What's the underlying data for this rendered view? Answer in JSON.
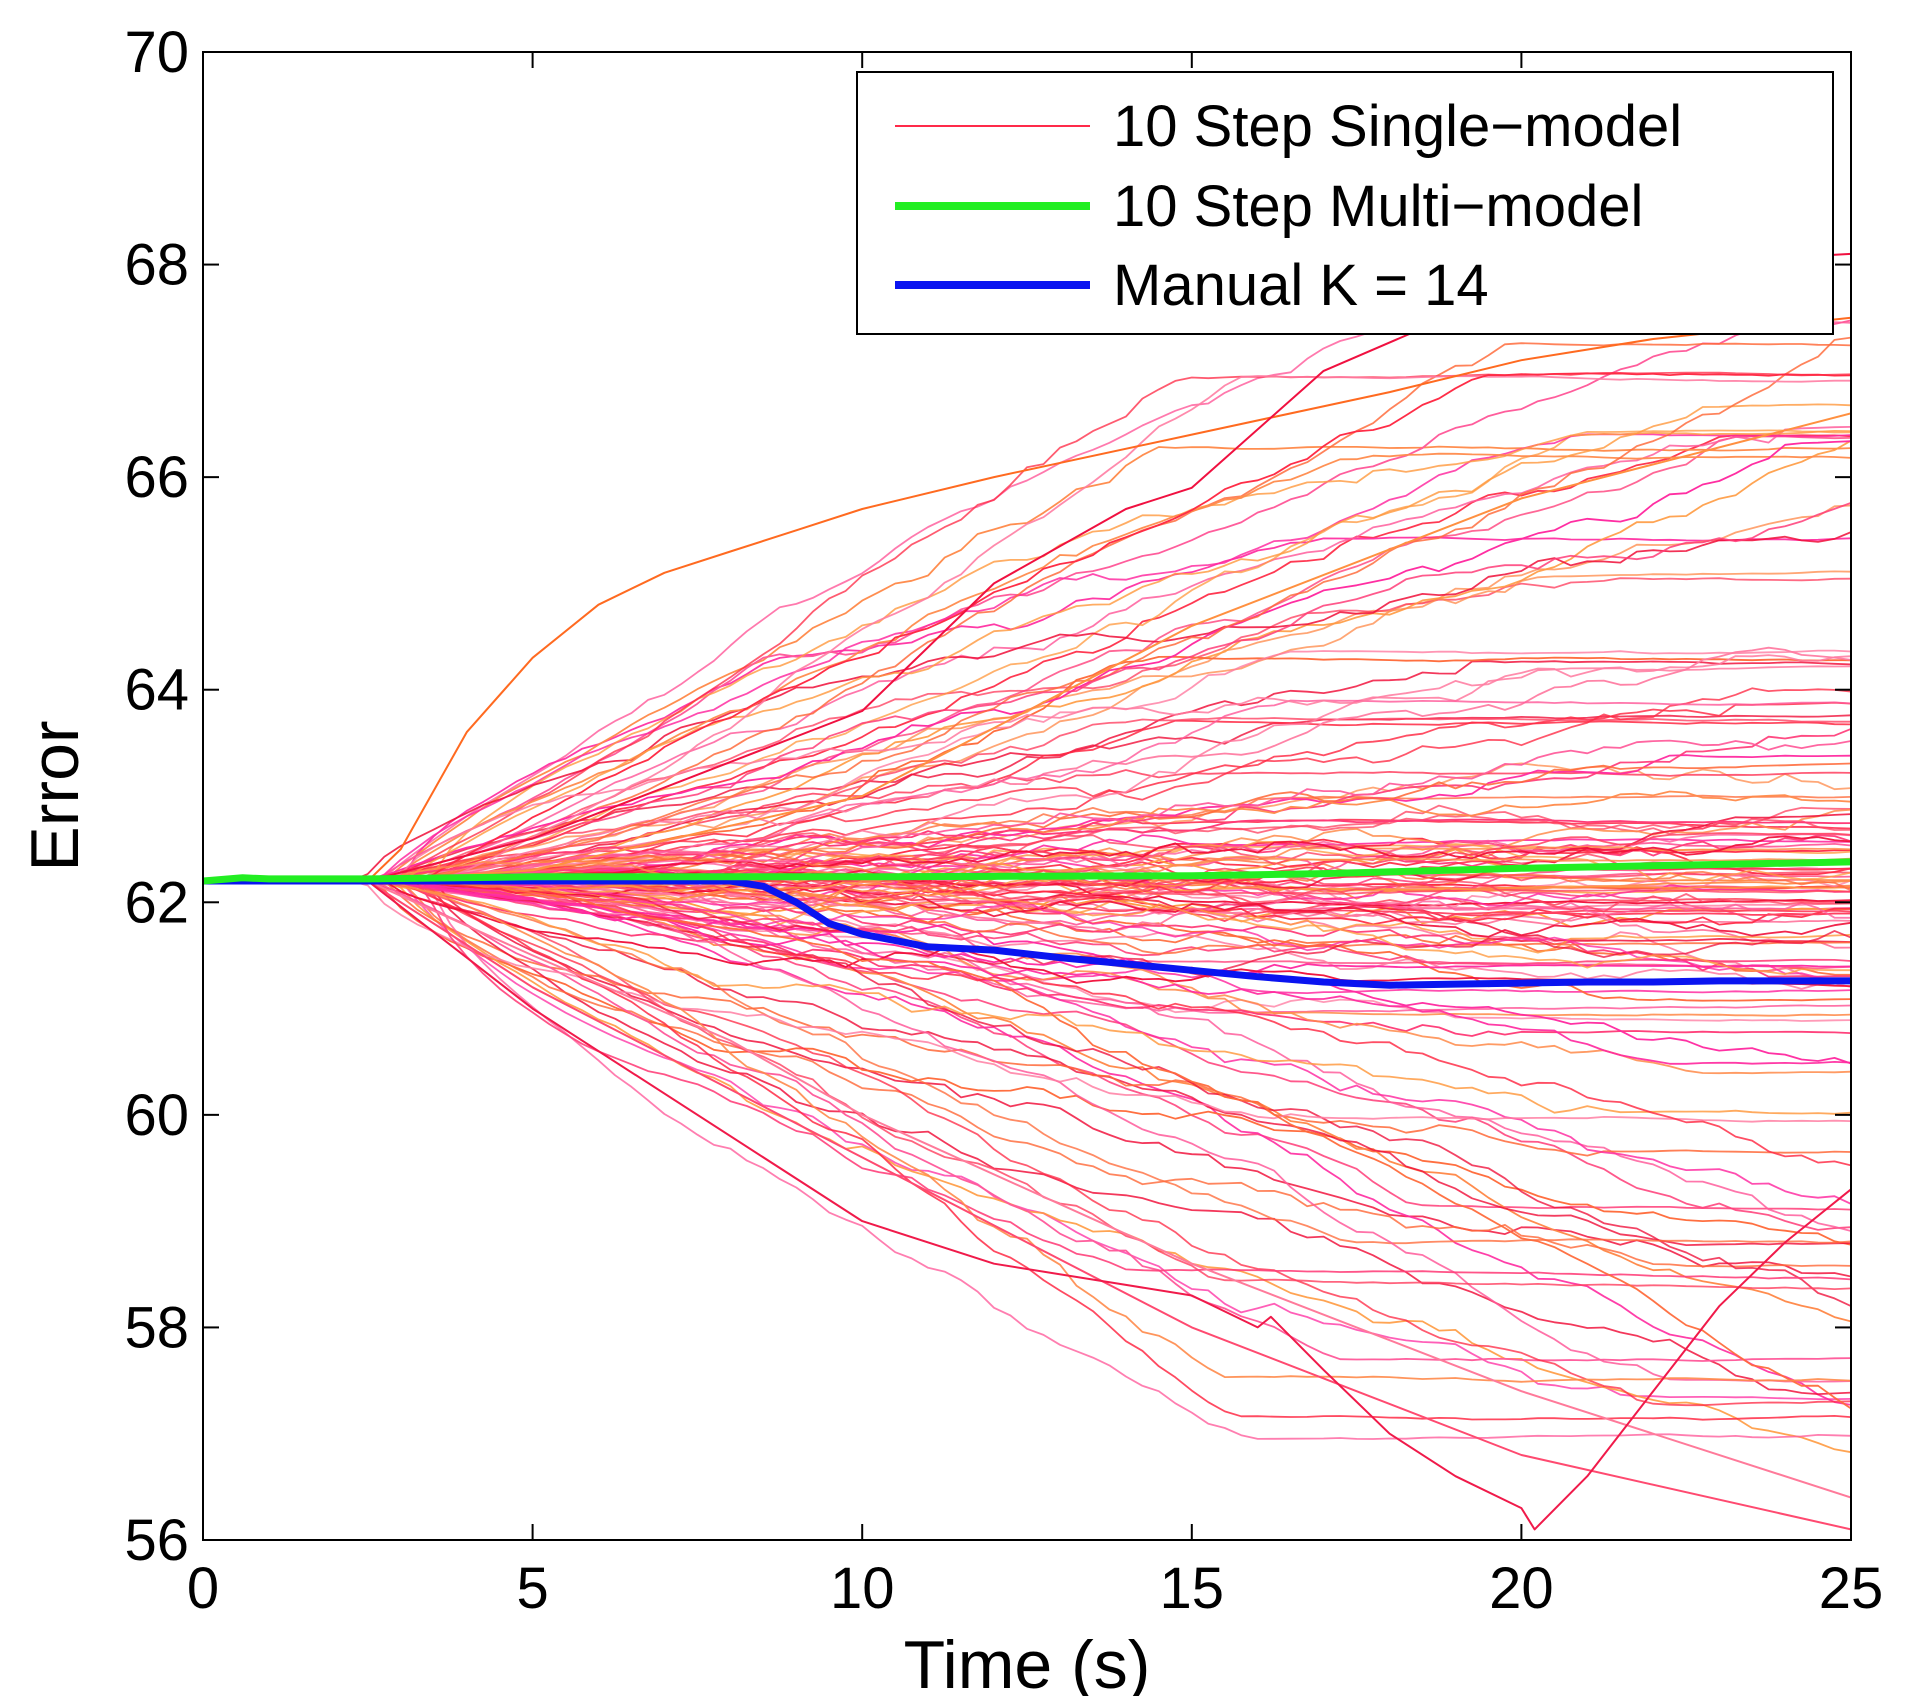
{
  "chart_data": {
    "type": "line",
    "title": "",
    "xlabel": "Time (s)",
    "ylabel": "Error",
    "xlim": [
      0,
      25
    ],
    "ylim": [
      56,
      70
    ],
    "x_ticks": [
      "0",
      "5",
      "10",
      "15",
      "20",
      "25"
    ],
    "y_ticks": [
      "56",
      "58",
      "60",
      "62",
      "64",
      "66",
      "68",
      "70"
    ],
    "grid": false,
    "legend_position": "top-right",
    "legend": [
      {
        "label": "10 Step Single−model",
        "color": "#ff2a4a",
        "style": "thin"
      },
      {
        "label": "10 Step Multi−model",
        "color": "#22ee22",
        "style": "thick"
      },
      {
        "label": "Manual K = 14",
        "color": "#0a14f0",
        "style": "thick"
      }
    ],
    "single_model": {
      "name": "10 Step Single−model",
      "count": 150,
      "x_start": 0,
      "x_end": 25,
      "y_start": 62.2,
      "final_range": [
        56.1,
        69.4
      ],
      "palette": [
        "#ff2a45",
        "#ff3c78",
        "#ff6a3a",
        "#ff8a4a",
        "#ff5a9a",
        "#ff2aa0",
        "#ff9a40",
        "#ff4060",
        "#ff7aa0",
        "#f0103a"
      ],
      "trajectories": [
        {
          "x": [
            0,
            2.5,
            3,
            4,
            5,
            6,
            7,
            8,
            9,
            10,
            12,
            15,
            18,
            20,
            22,
            25
          ],
          "y": [
            62.2,
            62.2,
            62.5,
            63.6,
            64.3,
            64.8,
            65.1,
            65.3,
            65.5,
            65.7,
            66.0,
            66.4,
            66.8,
            67.1,
            67.3,
            67.5
          ],
          "color": "#ff6a20"
        },
        {
          "x": [
            0,
            2.5,
            5,
            10,
            12,
            14,
            15,
            17,
            20,
            22,
            25
          ],
          "y": [
            62.2,
            62.2,
            62.6,
            63.8,
            65.0,
            65.7,
            65.9,
            67.0,
            67.8,
            68.0,
            68.1
          ],
          "color": "#f01040"
        },
        {
          "x": [
            0,
            2.5,
            5,
            8,
            10,
            15,
            20,
            25
          ],
          "y": [
            62.2,
            62.2,
            61.5,
            60.7,
            60.0,
            58.6,
            57.4,
            56.4
          ],
          "color": "#ff7a9a"
        },
        {
          "x": [
            0,
            2.5,
            5,
            10,
            15,
            20,
            25
          ],
          "y": [
            62.2,
            62.2,
            61.2,
            59.6,
            58.0,
            56.8,
            56.1
          ],
          "color": "#ff4a70"
        },
        {
          "x": [
            0,
            2.5,
            5,
            10,
            12,
            14,
            15,
            16,
            16.2,
            17,
            18,
            19,
            20,
            20.2,
            21,
            22,
            23,
            24,
            25
          ],
          "y": [
            62.2,
            62.2,
            61.0,
            59.0,
            58.6,
            58.4,
            58.3,
            58.0,
            58.1,
            57.6,
            57.0,
            56.6,
            56.3,
            56.1,
            56.6,
            57.4,
            58.2,
            58.8,
            59.3
          ],
          "color": "#f01a4a"
        },
        {
          "x": [
            0,
            2.5,
            5,
            10,
            15,
            20,
            25
          ],
          "y": [
            62.2,
            62.2,
            62.3,
            63.0,
            64.6,
            65.8,
            66.6
          ],
          "color": "#ff9040"
        }
      ]
    },
    "multi_model": {
      "name": "10 Step Multi−model",
      "color": "#22ee22",
      "x": [
        0,
        0.6,
        1,
        2,
        2.5,
        5,
        10,
        15,
        17,
        20,
        25
      ],
      "y": [
        62.2,
        62.23,
        62.22,
        62.22,
        62.22,
        62.24,
        62.24,
        62.25,
        62.27,
        62.32,
        62.38
      ]
    },
    "manual_k": {
      "name": "Manual K = 14",
      "color": "#0a14f0",
      "x": [
        0,
        2.5,
        5,
        8,
        8.5,
        9,
        9.5,
        10,
        11,
        12,
        13,
        14,
        15,
        16,
        17,
        18,
        19,
        20,
        21,
        22,
        23,
        24,
        25
      ],
      "y": [
        62.2,
        62.2,
        62.2,
        62.2,
        62.15,
        62.0,
        61.8,
        61.7,
        61.58,
        61.55,
        61.48,
        61.42,
        61.36,
        61.3,
        61.25,
        61.22,
        61.23,
        61.24,
        61.25,
        61.25,
        61.26,
        61.26,
        61.26
      ]
    }
  }
}
